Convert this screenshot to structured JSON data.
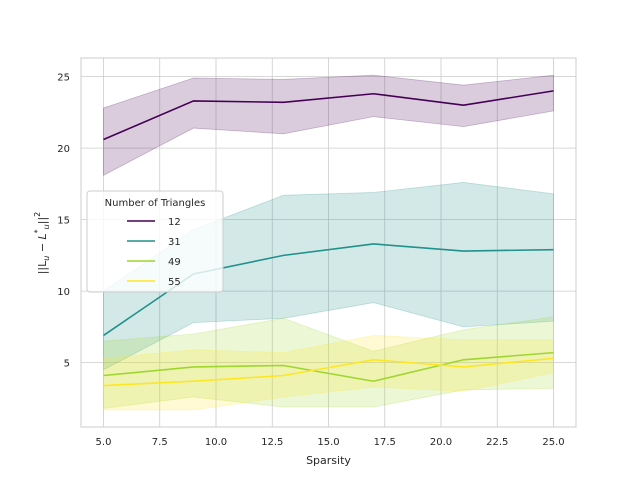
{
  "chart_data": {
    "type": "line",
    "xlabel": "Sparsity",
    "ylabel": "||L_u − L̂*_u||²",
    "ylabel_parts": {
      "left": "||L",
      "sub1": "u",
      "mid": " − ",
      "hat": "L",
      "sup": "*",
      "sub2": "u",
      "right": "||",
      "exp": "2"
    },
    "xlim": [
      4.0,
      26.0
    ],
    "ylim": [
      0.5,
      26.3
    ],
    "xticks": [
      5.0,
      7.5,
      10.0,
      12.5,
      15.0,
      17.5,
      20.0,
      22.5,
      25.0
    ],
    "xtick_labels": [
      "5.0",
      "7.5",
      "10.0",
      "12.5",
      "15.0",
      "17.5",
      "20.0",
      "22.5",
      "25.0"
    ],
    "yticks": [
      5,
      10,
      15,
      20,
      25
    ],
    "ytick_labels": [
      "5",
      "10",
      "15",
      "20",
      "25"
    ],
    "grid": true,
    "legend": {
      "title": "Number of Triangles",
      "placement": "center-left"
    },
    "x": [
      5,
      9,
      13,
      17,
      21,
      25
    ],
    "series": [
      {
        "name": "12",
        "color": "#440154",
        "values": [
          20.6,
          23.3,
          23.2,
          23.8,
          23.0,
          24.0
        ],
        "lower": [
          18.1,
          21.4,
          21.0,
          22.2,
          21.5,
          22.6
        ],
        "upper": [
          22.8,
          24.9,
          24.8,
          25.1,
          24.4,
          25.1
        ]
      },
      {
        "name": "31",
        "color": "#21918c",
        "values": [
          6.9,
          11.2,
          12.5,
          13.3,
          12.8,
          12.9
        ],
        "lower": [
          4.5,
          7.8,
          8.1,
          9.2,
          7.5,
          7.9
        ],
        "upper": [
          10.0,
          14.3,
          16.7,
          16.9,
          17.6,
          16.8
        ]
      },
      {
        "name": "49",
        "color": "#9ed62e",
        "values": [
          4.1,
          4.7,
          4.8,
          3.7,
          5.2,
          5.7
        ],
        "lower": [
          1.8,
          2.6,
          1.9,
          1.9,
          3.1,
          3.2
        ],
        "upper": [
          6.5,
          7.0,
          8.1,
          5.8,
          7.3,
          8.2
        ]
      },
      {
        "name": "55",
        "color": "#fde725",
        "values": [
          3.4,
          3.7,
          4.1,
          5.2,
          4.7,
          5.3
        ],
        "lower": [
          1.7,
          1.7,
          2.6,
          3.3,
          3.0,
          4.3
        ],
        "upper": [
          5.3,
          5.9,
          5.7,
          6.9,
          6.6,
          6.6
        ]
      }
    ]
  }
}
